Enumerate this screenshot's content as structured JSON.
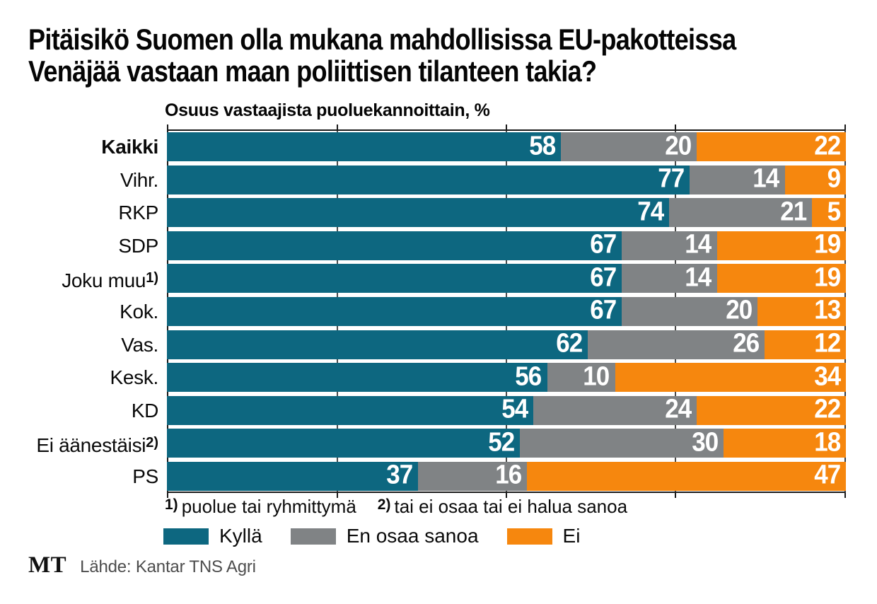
{
  "title": "Pitäisikö Suomen olla mukana mahdollisissa EU-pakotteissa\nVenäjää vastaan maan poliittisen tilanteen takia?",
  "subtitle": "Osuus vastaajista puoluekannoittain, %",
  "footnotes": [
    {
      "marker": "1)",
      "text": "puolue tai ryhmittymä"
    },
    {
      "marker": "2)",
      "text": "tai ei osaa tai ei halua sanoa"
    }
  ],
  "legend": [
    {
      "label": "Kyllä",
      "color": "#0d6780"
    },
    {
      "label": "En osaa sanoa",
      "color": "#808385"
    },
    {
      "label": "Ei",
      "color": "#f6870e"
    }
  ],
  "source": {
    "logo": "MT",
    "text": "Lähde: Kantar TNS Agri"
  },
  "chart_data": {
    "type": "bar",
    "orientation": "horizontal",
    "stacked": true,
    "unit": "%",
    "categories": [
      "Kaikki",
      "Vihr.",
      "RKP",
      "SDP",
      "Joku muu",
      "Kok.",
      "Vas.",
      "Kesk.",
      "KD",
      "Ei äänestäisi",
      "PS"
    ],
    "category_markers": [
      "",
      "",
      "",
      "",
      "1)",
      "",
      "",
      "",
      "",
      "2)",
      ""
    ],
    "bold_categories": [
      "Kaikki"
    ],
    "series": [
      {
        "name": "Kyllä",
        "color": "#0d6780",
        "values": [
          58,
          77,
          74,
          67,
          67,
          67,
          62,
          56,
          54,
          52,
          37
        ]
      },
      {
        "name": "En osaa sanoa",
        "color": "#808385",
        "values": [
          20,
          14,
          21,
          14,
          14,
          20,
          26,
          10,
          24,
          30,
          16
        ]
      },
      {
        "name": "Ei",
        "color": "#f6870e",
        "values": [
          22,
          9,
          5,
          19,
          19,
          13,
          12,
          34,
          22,
          18,
          47
        ]
      }
    ],
    "xlim": [
      0,
      100
    ],
    "ticks": [
      0,
      25,
      50,
      75,
      100
    ],
    "gridlines": [
      25,
      50,
      75
    ],
    "grid_color": "#4a4a4a",
    "axis_color": "#1a1a1a",
    "value_label_color": "#ffffff",
    "legend_position": "bottom"
  }
}
